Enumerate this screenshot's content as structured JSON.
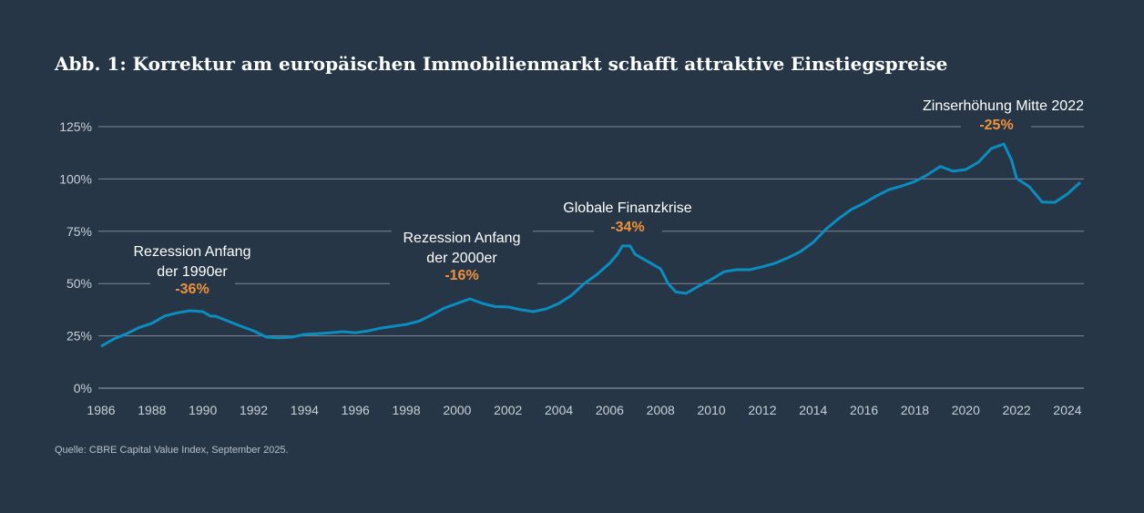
{
  "title": "Abb. 1: Korrektur am europäischen Immobilienmarkt schafft attraktive Einstiegspreise",
  "source": "Quelle: CBRE Capital Value Index, September 2025.",
  "colors": {
    "background": "#263646",
    "line": "#0b8dc0",
    "annotation_value": "#f0923a",
    "grid": "#7d8893"
  },
  "chart_data": {
    "type": "line",
    "title": "Abb. 1: Korrektur am europäischen Immobilienmarkt schafft attraktive Einstiegspreise",
    "xlabel": "",
    "ylabel": "",
    "xlim": [
      1986,
      2024.5
    ],
    "ylim": [
      0,
      125
    ],
    "grid": "horizontal",
    "x_ticks": [
      "1986",
      "1988",
      "1990",
      "1992",
      "1994",
      "1996",
      "1998",
      "2000",
      "2002",
      "2004",
      "2006",
      "2008",
      "2010",
      "2012",
      "2014",
      "2016",
      "2018",
      "2020",
      "2022",
      "2024"
    ],
    "y_ticks": [
      "0%",
      "25%",
      "50%",
      "75%",
      "100%",
      "125%"
    ],
    "x": [
      1986,
      1986.5,
      1987,
      1987.5,
      1988,
      1988.5,
      1989,
      1989.5,
      1990,
      1990.3,
      1990.5,
      1991,
      1991.5,
      1992,
      1992.5,
      1993,
      1993.5,
      1994,
      1994.5,
      1995,
      1995.5,
      1996,
      1996.5,
      1997,
      1997.5,
      1998,
      1998.5,
      1999,
      1999.5,
      2000,
      2000.5,
      2001,
      2001.5,
      2002,
      2002.5,
      2003,
      2003.5,
      2004,
      2004.5,
      2005,
      2005.5,
      2006,
      2006.3,
      2006.5,
      2006.8,
      2007,
      2007.5,
      2008,
      2008.3,
      2008.6,
      2009,
      2009.5,
      2010,
      2010.5,
      2011,
      2011.5,
      2012,
      2012.5,
      2013,
      2013.5,
      2014,
      2014.5,
      2015,
      2015.5,
      2016,
      2016.5,
      2017,
      2017.5,
      2018,
      2018.5,
      2019,
      2019.5,
      2020,
      2020.5,
      2021,
      2021.5,
      2021.8,
      2022,
      2022.5,
      2023,
      2023.5,
      2024,
      2024.5
    ],
    "values": [
      20,
      23.5,
      26,
      29,
      31,
      34.5,
      36,
      37,
      36.6,
      34.4,
      34.4,
      32,
      29.6,
      27.4,
      24.4,
      24,
      24.4,
      25.7,
      26,
      26.5,
      27,
      26.5,
      27.4,
      28.7,
      29.6,
      30.5,
      32,
      35,
      38.3,
      40.5,
      42.7,
      40.5,
      39,
      38.8,
      37.5,
      36.6,
      37.9,
      40.5,
      44.4,
      50,
      54.4,
      59.7,
      64,
      68,
      68,
      64,
      60.5,
      57,
      50,
      46,
      45.3,
      48.8,
      52,
      55.7,
      56.6,
      56.6,
      58,
      59.7,
      62.3,
      65.3,
      69.7,
      76,
      81,
      85.4,
      88.4,
      92,
      95,
      96.7,
      98.8,
      102,
      106,
      103.7,
      104.5,
      108,
      114.5,
      116.7,
      109,
      100.2,
      96.3,
      89,
      88.8,
      92.8,
      98.4
    ],
    "annotations": [
      {
        "lines": [
          "Rezession Anfang",
          "der 1990er"
        ],
        "value": "-36%",
        "x": 1989.5
      },
      {
        "lines": [
          "Rezession Anfang",
          "der 2000er"
        ],
        "value": "-16%",
        "x": 2000.2
      },
      {
        "lines": [
          "Globale Finanzkrise"
        ],
        "value": "-34%",
        "x": 2006.8
      },
      {
        "lines": [
          "Zinserhöhung Mitte 2022"
        ],
        "value": "-25%",
        "x": 2021.3
      }
    ]
  }
}
